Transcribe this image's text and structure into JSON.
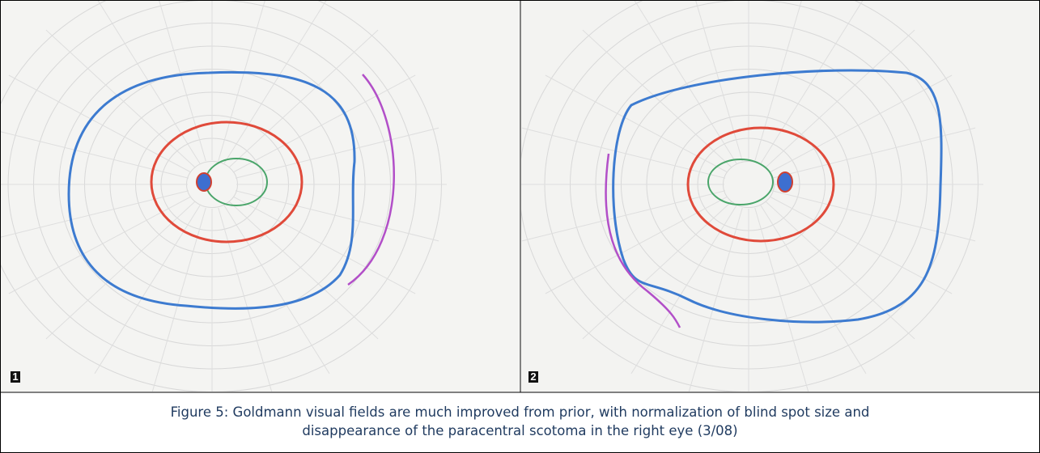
{
  "figure": {
    "panels": [
      {
        "label": "1"
      },
      {
        "label": "2"
      }
    ],
    "caption_lines": [
      "Figure 5: Goldmann visual fields are much improved from prior, with normalization of blind spot size and",
      "disappearance of the paracentral scotoma in the right eye (3/08)"
    ]
  }
}
